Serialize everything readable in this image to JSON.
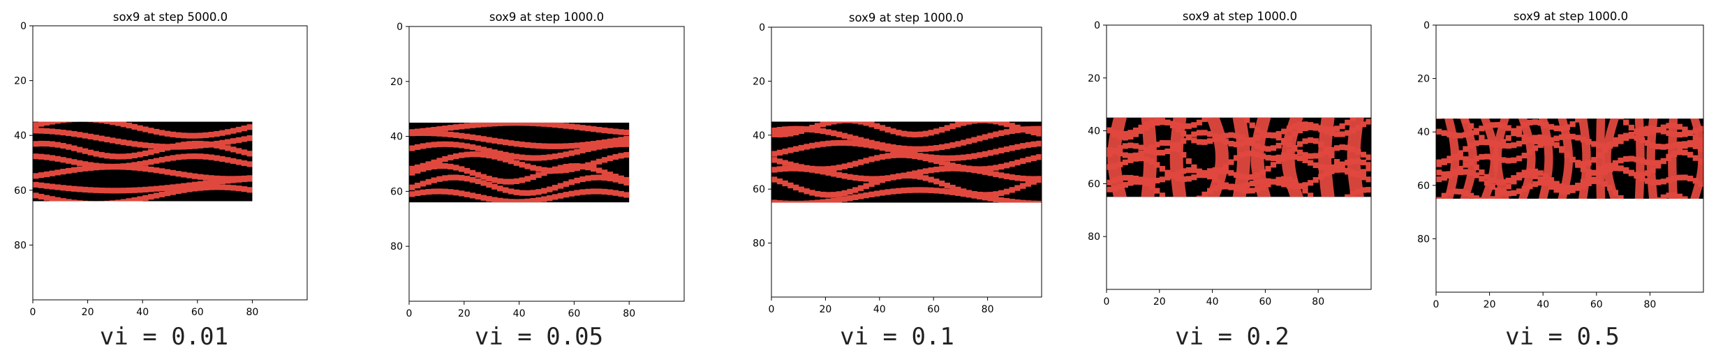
{
  "chart_data": [
    {
      "type": "heatmap",
      "title": "sox9 at step 5000.0",
      "caption": "vi = 0.01",
      "colors": {
        "high": "#e0483e",
        "low": "#000000"
      },
      "pattern_rows": [
        35,
        64
      ],
      "pattern_cols": [
        0,
        80
      ],
      "xlim": [
        0,
        100
      ],
      "ylim": [
        100,
        0
      ],
      "xticks": [
        0,
        20,
        40,
        60,
        80
      ],
      "yticks": [
        0,
        20,
        40,
        60,
        80
      ],
      "stripes": 7,
      "wobble": 2.6,
      "seed": 1
    },
    {
      "type": "heatmap",
      "title": "sox9 at step 1000.0",
      "caption": "vi = 0.05",
      "colors": {
        "high": "#e0483e",
        "low": "#000000"
      },
      "pattern_rows": [
        35,
        64
      ],
      "pattern_cols": [
        0,
        80
      ],
      "xlim": [
        0,
        100
      ],
      "ylim": [
        100,
        0
      ],
      "xticks": [
        0,
        20,
        40,
        60,
        80
      ],
      "yticks": [
        0,
        20,
        40,
        60,
        80
      ],
      "stripes": 7,
      "wobble": 2.8,
      "seed": 2
    },
    {
      "type": "heatmap",
      "title": "sox9 at step 1000.0",
      "caption": "vi = 0.1",
      "colors": {
        "high": "#e0483e",
        "low": "#000000"
      },
      "pattern_rows": [
        35,
        65
      ],
      "pattern_cols": [
        0,
        100
      ],
      "xlim": [
        0,
        100
      ],
      "ylim": [
        100,
        0
      ],
      "xticks": [
        0,
        20,
        40,
        60,
        80
      ],
      "yticks": [
        0,
        20,
        40,
        60,
        80
      ],
      "stripes": 7,
      "wobble": 3.2,
      "seed": 3
    },
    {
      "type": "heatmap",
      "title": "sox9 at step 1000.0",
      "caption": "vi = 0.2",
      "colors": {
        "high": "#e0483e",
        "low": "#000000"
      },
      "pattern_rows": [
        35,
        65
      ],
      "pattern_cols": [
        0,
        100
      ],
      "xlim": [
        0,
        100
      ],
      "ylim": [
        100,
        0
      ],
      "xticks": [
        0,
        20,
        40,
        60,
        80
      ],
      "yticks": [
        0,
        20,
        40,
        60,
        80
      ],
      "stripes": 7,
      "wobble": 3.6,
      "seed": 4
    },
    {
      "type": "heatmap",
      "title": "sox9 at step 1000.0",
      "caption": "vi = 0.5",
      "colors": {
        "high": "#e0483e",
        "low": "#000000"
      },
      "pattern_rows": [
        35,
        65
      ],
      "pattern_cols": [
        0,
        100
      ],
      "xlim": [
        0,
        100
      ],
      "ylim": [
        100,
        0
      ],
      "xticks": [
        0,
        20,
        40,
        60,
        80
      ],
      "yticks": [
        0,
        20,
        40,
        60,
        80
      ],
      "stripes": 7,
      "wobble": 4.0,
      "seed": 5
    }
  ]
}
